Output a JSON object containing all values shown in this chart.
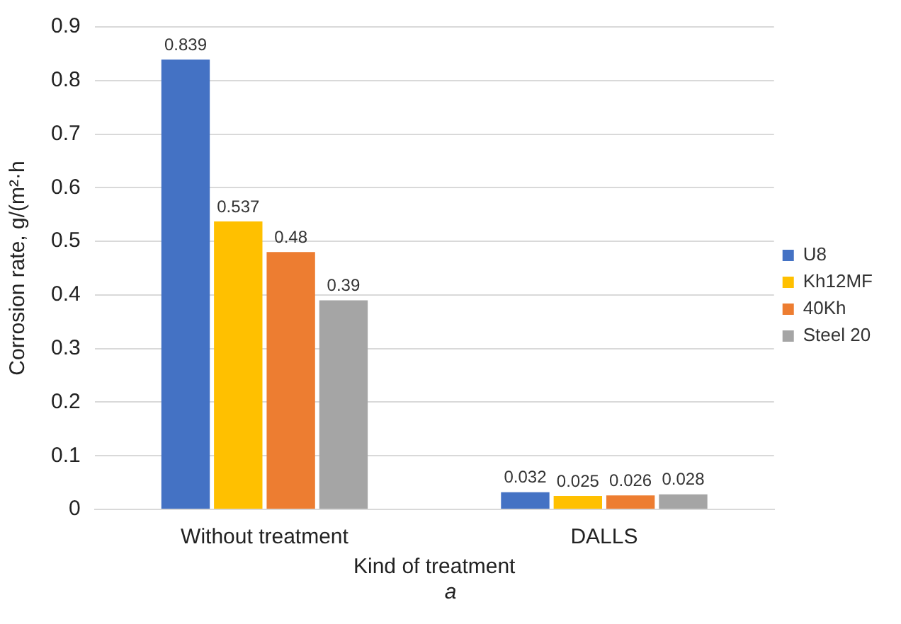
{
  "chart_data": {
    "type": "bar",
    "xlabel": "Kind of treatment",
    "ylabel": "Corrosion rate, g/(m²·h",
    "categories": [
      "Without treatment",
      "DALLS"
    ],
    "series": [
      {
        "name": "U8",
        "color": "#4472c4",
        "values": [
          0.839,
          0.032
        ]
      },
      {
        "name": "Kh12MF",
        "color": "#ffc000",
        "values": [
          0.537,
          0.025
        ]
      },
      {
        "name": "40Kh",
        "color": "#ed7d31",
        "values": [
          0.48,
          0.026
        ]
      },
      {
        "name": "Steel 20",
        "color": "#a5a5a5",
        "values": [
          0.39,
          0.028
        ]
      }
    ],
    "ylim": [
      0,
      0.9
    ],
    "yticks": [
      0,
      0.1,
      0.2,
      0.3,
      0.4,
      0.5,
      0.6,
      0.7,
      0.8,
      0.9
    ],
    "grid": "y",
    "legend": "right",
    "data_labels": true,
    "annotations": [
      "a"
    ]
  }
}
